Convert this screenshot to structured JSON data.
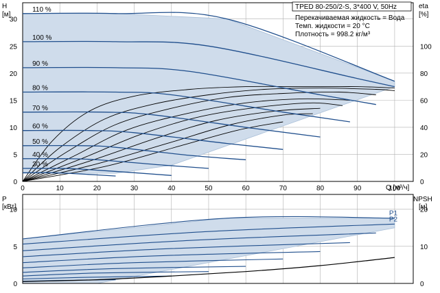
{
  "title": "TPED 80-250/2-S, 3*400 V, 50Hz",
  "info_lines": [
    "Перекачиваемая жидкость = Вода",
    "Темп. жидкости = 20 °C",
    "Плотность = 998.2 кг/м³"
  ],
  "colors": {
    "envelope_fill": "#cfdceb",
    "envelope_edge": "#a9bfd8",
    "qh_curve": "#1f4e8c",
    "eta_curve": "#000000",
    "grid": "#b0b0b0",
    "axis": "#000000"
  },
  "chart_data": [
    {
      "type": "line",
      "panel": "top",
      "xlabel": "Q [м³/ч]",
      "ylabel": "H",
      "ylabel_unit": "[м]",
      "y2label": "eta",
      "y2label_unit": "[%]",
      "xlim": [
        0,
        105
      ],
      "ylim": [
        0,
        33
      ],
      "y2lim": [
        0,
        132
      ],
      "x_ticks": [
        0,
        10,
        20,
        30,
        40,
        50,
        60,
        70,
        80,
        90,
        100
      ],
      "y_ticks": [
        0,
        5,
        10,
        15,
        20,
        25,
        30
      ],
      "y2_ticks": [
        0,
        20,
        40,
        60,
        80,
        100
      ],
      "grid": true,
      "envelope": [
        [
          0,
          31
        ],
        [
          25,
          31
        ],
        [
          55,
          30
        ],
        [
          100,
          18.5
        ],
        [
          100,
          17.5
        ],
        [
          40,
          3
        ],
        [
          25,
          1.5
        ],
        [
          0,
          1.5
        ]
      ],
      "speed_curves": [
        {
          "label": "110 %",
          "x": [
            0,
            25,
            55,
            100
          ],
          "y": [
            31,
            31,
            30,
            18.5
          ]
        },
        {
          "label": "100 %",
          "x": [
            0,
            25,
            50,
            90,
            100
          ],
          "y": [
            25.8,
            25.8,
            25,
            19,
            17.5
          ]
        },
        {
          "label": "90 %",
          "x": [
            0,
            25,
            45,
            80,
            95
          ],
          "y": [
            21,
            21,
            20.3,
            16,
            14.2
          ]
        },
        {
          "label": "80 %",
          "x": [
            0,
            25,
            40,
            70,
            88
          ],
          "y": [
            16.5,
            16.5,
            16,
            12.8,
            11
          ]
        },
        {
          "label": "70 %",
          "x": [
            0,
            22,
            35,
            62,
            80
          ],
          "y": [
            12.8,
            12.8,
            12.3,
            9.8,
            8.2
          ]
        },
        {
          "label": "60 %",
          "x": [
            0,
            18,
            30,
            55,
            70
          ],
          "y": [
            9.4,
            9.4,
            9,
            7,
            5.9
          ]
        },
        {
          "label": "50 %",
          "x": [
            0,
            16,
            25,
            45,
            60
          ],
          "y": [
            6.6,
            6.6,
            6.3,
            4.8,
            4
          ]
        },
        {
          "label": "40 %",
          "x": [
            0,
            12,
            20,
            38,
            50
          ],
          "y": [
            4.2,
            4.2,
            4,
            3,
            2.4
          ]
        },
        {
          "label": "30 %",
          "x": [
            0,
            9,
            15,
            30,
            40
          ],
          "y": [
            2.4,
            2.4,
            2.3,
            1.6,
            1.1
          ]
        },
        {
          "label": "",
          "x": [
            0,
            7,
            12,
            20,
            25
          ],
          "y": [
            1.6,
            1.6,
            1.5,
            1.2,
            1.0
          ]
        }
      ],
      "eta_curves": [
        {
          "x": [
            0,
            8,
            18,
            30,
            45,
            60,
            75,
            90,
            100
          ],
          "y": [
            0,
            30,
            52,
            63,
            68,
            70,
            70,
            70,
            69
          ]
        },
        {
          "x": [
            0,
            10,
            22,
            35,
            50,
            65,
            80,
            95,
            100
          ],
          "y": [
            0,
            25,
            46,
            57,
            64,
            68,
            69,
            68,
            67
          ]
        },
        {
          "x": [
            0,
            12,
            25,
            40,
            55,
            70,
            85,
            95
          ],
          "y": [
            0,
            22,
            42,
            54,
            62,
            65,
            66,
            64
          ]
        },
        {
          "x": [
            0,
            14,
            28,
            44,
            60,
            75,
            88
          ],
          "y": [
            0,
            19,
            38,
            50,
            58,
            61,
            60
          ]
        },
        {
          "x": [
            0,
            16,
            32,
            48,
            64,
            78,
            86
          ],
          "y": [
            0,
            17,
            35,
            48,
            55,
            58,
            56
          ]
        },
        {
          "x": [
            0,
            18,
            36,
            52,
            68,
            80
          ],
          "y": [
            0,
            15,
            32,
            45,
            52,
            54
          ]
        },
        {
          "x": [
            0,
            20,
            40,
            56,
            70,
            78
          ],
          "y": [
            0,
            13,
            29,
            42,
            49,
            50
          ]
        },
        {
          "x": [
            0,
            22,
            42,
            58,
            70
          ],
          "y": [
            0,
            11,
            26,
            38,
            44
          ]
        }
      ]
    },
    {
      "type": "line",
      "panel": "bottom",
      "ylabel": "P",
      "ylabel_unit": "[кВт]",
      "y2label": "NPSH",
      "y2label_unit": "[м]",
      "xlim": [
        0,
        105
      ],
      "ylim": [
        0,
        12
      ],
      "y2lim": [
        0,
        24
      ],
      "x_ticks": [
        0,
        10,
        20,
        30,
        40,
        50,
        60,
        70,
        80,
        90,
        100
      ],
      "y_ticks": [
        0,
        5,
        10
      ],
      "y2_ticks": [
        0,
        10,
        20
      ],
      "grid": true,
      "envelope": [
        [
          0,
          6
        ],
        [
          55,
          8.8
        ],
        [
          100,
          8.8
        ],
        [
          100,
          7.5
        ],
        [
          20,
          0
        ],
        [
          0,
          0
        ]
      ],
      "power_curves": [
        {
          "label": "P1",
          "x": [
            0,
            55,
            100
          ],
          "y": [
            6,
            8.8,
            8.8
          ]
        },
        {
          "label": "P2",
          "x": [
            0,
            50,
            100
          ],
          "y": [
            5.3,
            7,
            8
          ]
        },
        {
          "label": "",
          "x": [
            0,
            45,
            95
          ],
          "y": [
            4.4,
            5.8,
            6.8
          ]
        },
        {
          "label": "",
          "x": [
            0,
            40,
            88
          ],
          "y": [
            3.6,
            4.7,
            5.5
          ]
        },
        {
          "label": "",
          "x": [
            0,
            35,
            80
          ],
          "y": [
            2.8,
            3.7,
            4.3
          ]
        },
        {
          "label": "",
          "x": [
            0,
            30,
            70
          ],
          "y": [
            2.1,
            2.8,
            3.3
          ]
        },
        {
          "label": "",
          "x": [
            0,
            25,
            60
          ],
          "y": [
            1.5,
            2,
            2.3
          ]
        },
        {
          "label": "",
          "x": [
            0,
            20,
            50
          ],
          "y": [
            1,
            1.4,
            1.6
          ]
        },
        {
          "label": "",
          "x": [
            0,
            15,
            40
          ],
          "y": [
            0.6,
            0.8,
            1
          ]
        },
        {
          "label": "",
          "x": [
            0,
            10,
            25
          ],
          "y": [
            0.3,
            0.4,
            0.5
          ]
        }
      ],
      "npsh_curve": {
        "x": [
          0,
          20,
          40,
          60,
          80,
          100
        ],
        "y": [
          0.5,
          1,
          2,
          3.2,
          4.8,
          7
        ]
      }
    }
  ]
}
